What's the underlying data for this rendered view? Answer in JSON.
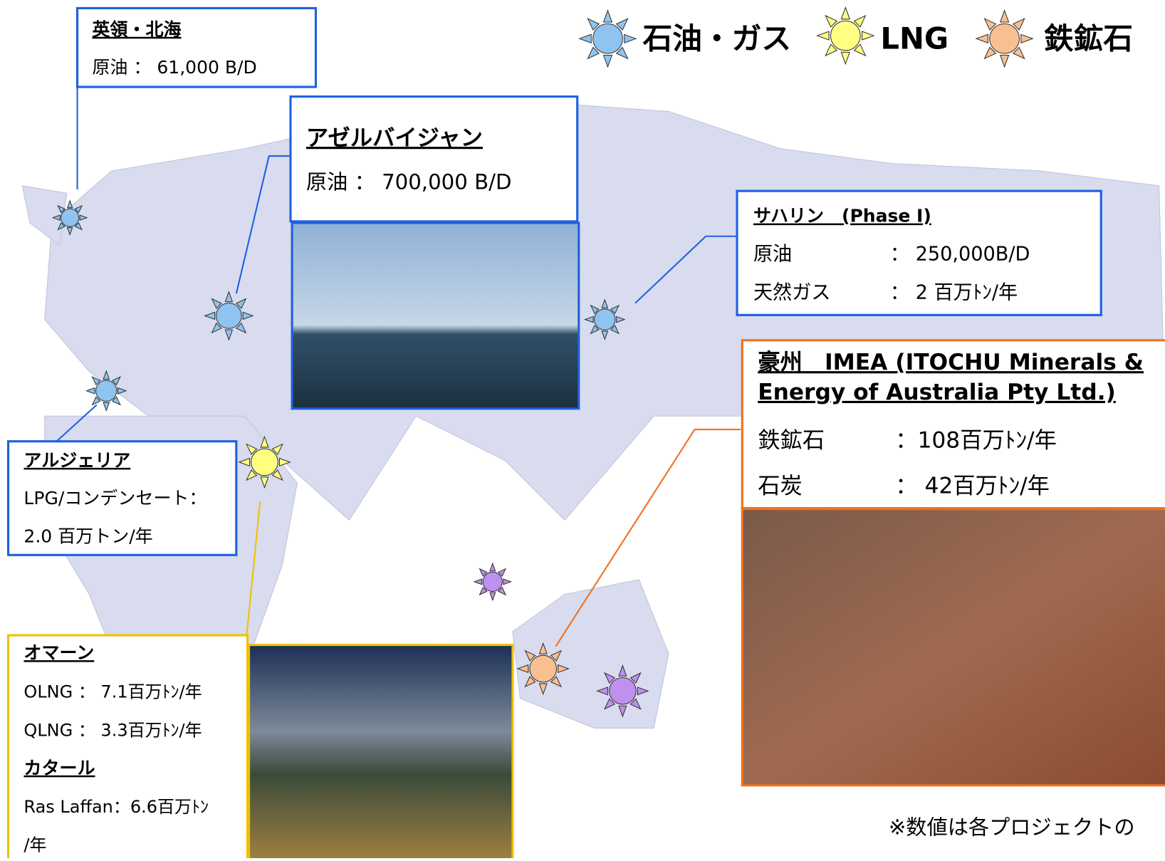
{
  "legend": [
    "石油・ガス",
    "LNG",
    "鉄鉱石"
  ],
  "uk": {
    "title": "英領・北海",
    "lines": [
      "原油 ： 61,000 B/D"
    ]
  },
  "azerbaijan": {
    "title": "アゼルバイジャン",
    "lines": [
      "原油 ： 700,000 B/D"
    ]
  },
  "sakhalin": {
    "title": "サハリン　(Phase I)",
    "rows": [
      {
        "label": "原油",
        "value": "： 250,000B/D"
      },
      {
        "label": "天然ガス",
        "value": "：  2 百万ﾄﾝ/年"
      }
    ]
  },
  "australia": {
    "title": [
      "豪州　IMEA (ITOCHU Minerals &",
      "Energy of Australia Pty Ltd.)"
    ],
    "rows": [
      {
        "label": "鉄鉱石",
        "value": "：108百万ﾄﾝ/年"
      },
      {
        "label": "石炭",
        "value": "：  42百万ﾄﾝ/年"
      }
    ]
  },
  "algeria": {
    "title": "アルジェリア",
    "lines": [
      "LPG/コンデンセート：",
      "2.0 百万トン/年"
    ]
  },
  "oman": {
    "title": "オマーン",
    "lines": [
      "OLNG ： 7.1百万ﾄﾝ/年",
      "QLNG ： 3.3百万ﾄﾝ/年"
    ]
  },
  "qatar": {
    "title": "カタール",
    "lines": [
      "Ras Laffan：6.6百万ﾄﾝ",
      "/年"
    ]
  },
  "footnote": "※数値は各プロジェクトの"
}
